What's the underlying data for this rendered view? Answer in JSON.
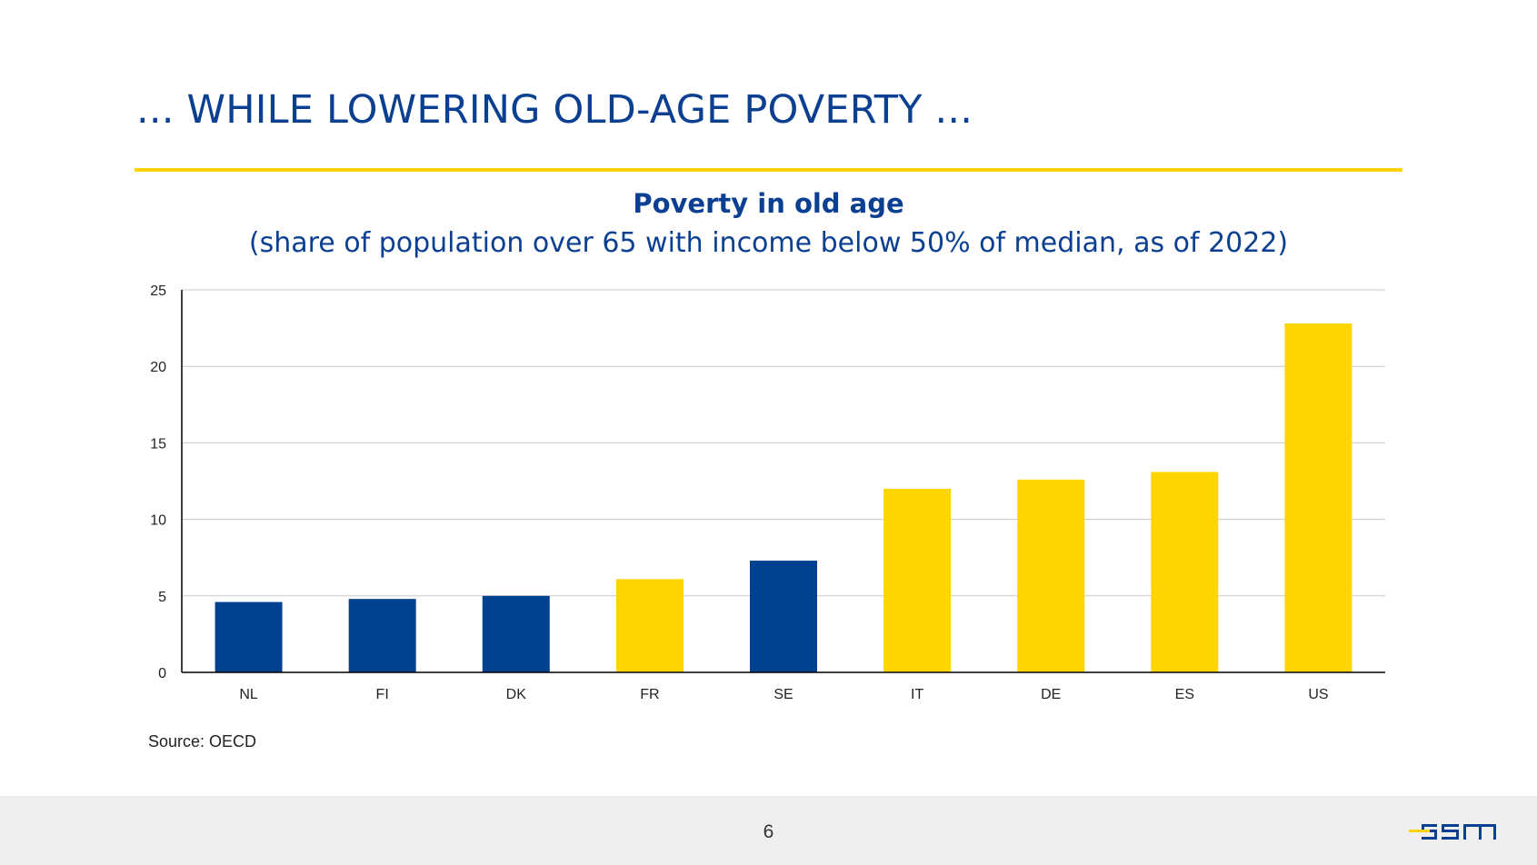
{
  "slide": {
    "title": "... WHILE LOWERING OLD-AGE POVERTY ...",
    "source": "Source: OECD",
    "page_number": "6",
    "logo_text": "esm"
  },
  "colors": {
    "blue": "#00428f",
    "yellow": "#ffd500",
    "title_blue": "#0b3f91",
    "rule_yellow": "#ffd400",
    "grid": "#c8c8c8",
    "axis": "#000000"
  },
  "chart_data": {
    "type": "bar",
    "title": "Poverty in old age",
    "subtitle": "(share of population over 65 with income below 50% of median, as of 2022)",
    "categories": [
      "NL",
      "FI",
      "DK",
      "FR",
      "SE",
      "IT",
      "DE",
      "ES",
      "US"
    ],
    "values": [
      4.6,
      4.8,
      5.0,
      6.1,
      7.3,
      12.0,
      12.6,
      13.1,
      22.8
    ],
    "bar_colors": [
      "blue",
      "blue",
      "blue",
      "yellow",
      "blue",
      "yellow",
      "yellow",
      "yellow",
      "yellow"
    ],
    "yticks": [
      0,
      5,
      10,
      15,
      20,
      25
    ],
    "ylim": [
      0,
      25
    ],
    "xlabel": "",
    "ylabel": "",
    "grid": true,
    "legend": "none"
  }
}
